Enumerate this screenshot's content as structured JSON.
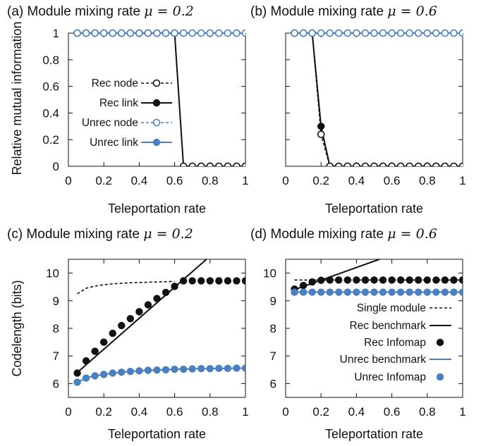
{
  "colors": {
    "rec": "#111111",
    "unrec": "#4a7fc1",
    "axis": "#111111"
  },
  "chart_data": [
    {
      "id": "a",
      "type": "line",
      "title_prefix": "(a) Module mixing rate ",
      "title_mu": "μ = 0.2",
      "xlabel": "Teleportation rate",
      "ylabel": "Relative mutual information",
      "xlim": [
        0,
        1
      ],
      "ylim": [
        0,
        1
      ],
      "xticks": [
        0,
        0.2,
        0.4,
        0.6,
        0.8,
        1
      ],
      "yticks": [
        0,
        0.2,
        0.4,
        0.6,
        0.8,
        1
      ],
      "xtick_labels": [
        "0",
        "0.2",
        "0.4",
        "0.6",
        "0.8",
        "1"
      ],
      "ytick_labels": [
        "0",
        "0.2",
        "0.4",
        "0.6",
        "0.8",
        "1"
      ],
      "legend_position": "middle-left",
      "series": [
        {
          "name": "Rec node",
          "style": "dashed",
          "marker": "open-circle",
          "color": "rec",
          "x": [
            0.05,
            0.1,
            0.15,
            0.2,
            0.25,
            0.3,
            0.35,
            0.4,
            0.45,
            0.5,
            0.55,
            0.6,
            0.65,
            0.7,
            0.75,
            0.8,
            0.85,
            0.9,
            0.95,
            1.0
          ],
          "y": [
            1,
            1,
            1,
            1,
            1,
            1,
            1,
            1,
            1,
            1,
            1,
            1,
            0,
            0,
            0,
            0,
            0,
            0,
            0,
            0
          ]
        },
        {
          "name": "Rec link",
          "style": "solid",
          "marker": "filled-circle",
          "color": "rec",
          "x": [
            0.05,
            0.1,
            0.15,
            0.2,
            0.25,
            0.3,
            0.35,
            0.4,
            0.45,
            0.5,
            0.55,
            0.6,
            0.65,
            0.7,
            0.75,
            0.8,
            0.85,
            0.9,
            0.95,
            1.0
          ],
          "y": [
            1,
            1,
            1,
            1,
            1,
            1,
            1,
            1,
            1,
            1,
            1,
            1,
            0,
            0,
            0,
            0,
            0,
            0,
            0,
            0
          ]
        },
        {
          "name": "Unrec node",
          "style": "dashed",
          "marker": "open-circle",
          "color": "unrec",
          "x": [
            0.05,
            0.1,
            0.15,
            0.2,
            0.25,
            0.3,
            0.35,
            0.4,
            0.45,
            0.5,
            0.55,
            0.6,
            0.65,
            0.7,
            0.75,
            0.8,
            0.85,
            0.9,
            0.95,
            1.0
          ],
          "y": [
            1,
            1,
            1,
            1,
            1,
            1,
            1,
            1,
            1,
            1,
            1,
            1,
            1,
            1,
            1,
            1,
            1,
            1,
            1,
            1
          ]
        },
        {
          "name": "Unrec link",
          "style": "solid",
          "marker": "filled-circle",
          "color": "unrec",
          "x": [
            0.05,
            0.1,
            0.15,
            0.2,
            0.25,
            0.3,
            0.35,
            0.4,
            0.45,
            0.5,
            0.55,
            0.6,
            0.65,
            0.7,
            0.75,
            0.8,
            0.85,
            0.9,
            0.95,
            1.0
          ],
          "y": [
            1,
            1,
            1,
            1,
            1,
            1,
            1,
            1,
            1,
            1,
            1,
            1,
            1,
            1,
            1,
            1,
            1,
            1,
            1,
            1
          ]
        }
      ]
    },
    {
      "id": "b",
      "type": "line",
      "title_prefix": "(b) Module mixing rate ",
      "title_mu": "μ = 0.6",
      "xlabel": "Teleportation rate",
      "ylabel": "",
      "xlim": [
        0,
        1
      ],
      "ylim": [
        0,
        1
      ],
      "xticks": [
        0,
        0.2,
        0.4,
        0.6,
        0.8,
        1
      ],
      "yticks": [
        0,
        0.2,
        0.4,
        0.6,
        0.8,
        1
      ],
      "xtick_labels": [
        "0",
        "0.2",
        "0.4",
        "0.6",
        "0.8",
        "1"
      ],
      "ytick_labels": [],
      "series": [
        {
          "name": "Rec node",
          "style": "dashed",
          "marker": "open-circle",
          "color": "rec",
          "x": [
            0.05,
            0.1,
            0.15,
            0.2,
            0.25,
            0.3,
            0.35,
            0.4,
            0.45,
            0.5,
            0.55,
            0.6,
            0.65,
            0.7,
            0.75,
            0.8,
            0.85,
            0.9,
            0.95,
            1.0
          ],
          "y": [
            1,
            1,
            1,
            0.24,
            0,
            0,
            0,
            0,
            0,
            0,
            0,
            0,
            0,
            0,
            0,
            0,
            0,
            0,
            0,
            0
          ]
        },
        {
          "name": "Rec link",
          "style": "solid",
          "marker": "filled-circle",
          "color": "rec",
          "x": [
            0.05,
            0.1,
            0.15,
            0.2,
            0.25,
            0.3,
            0.35,
            0.4,
            0.45,
            0.5,
            0.55,
            0.6,
            0.65,
            0.7,
            0.75,
            0.8,
            0.85,
            0.9,
            0.95,
            1.0
          ],
          "y": [
            1,
            1,
            1,
            0.3,
            0,
            0,
            0,
            0,
            0,
            0,
            0,
            0,
            0,
            0,
            0,
            0,
            0,
            0,
            0,
            0
          ]
        },
        {
          "name": "Unrec node",
          "style": "dashed",
          "marker": "open-circle",
          "color": "unrec",
          "x": [
            0.05,
            0.1,
            0.15,
            0.2,
            0.25,
            0.3,
            0.35,
            0.4,
            0.45,
            0.5,
            0.55,
            0.6,
            0.65,
            0.7,
            0.75,
            0.8,
            0.85,
            0.9,
            0.95,
            1.0
          ],
          "y": [
            1,
            1,
            1,
            1,
            1,
            1,
            1,
            1,
            1,
            1,
            1,
            1,
            1,
            1,
            1,
            1,
            1,
            1,
            1,
            1
          ]
        },
        {
          "name": "Unrec link",
          "style": "solid",
          "marker": "filled-circle",
          "color": "unrec",
          "x": [
            0.05,
            0.1,
            0.15,
            0.2,
            0.25,
            0.3,
            0.35,
            0.4,
            0.45,
            0.5,
            0.55,
            0.6,
            0.65,
            0.7,
            0.75,
            0.8,
            0.85,
            0.9,
            0.95,
            1.0
          ],
          "y": [
            1,
            1,
            1,
            1,
            1,
            1,
            1,
            1,
            1,
            1,
            1,
            1,
            1,
            1,
            1,
            1,
            1,
            1,
            1,
            1
          ]
        }
      ]
    },
    {
      "id": "c",
      "type": "line",
      "title_prefix": "(c) Module mixing rate ",
      "title_mu": "μ = 0.2",
      "xlabel": "Teleportation rate",
      "ylabel": "Codelength (bits)",
      "xlim": [
        0,
        1
      ],
      "ylim": [
        5.5,
        10.5
      ],
      "xticks": [
        0,
        0.2,
        0.4,
        0.6,
        0.8,
        1
      ],
      "yticks": [
        6,
        7,
        8,
        9,
        10
      ],
      "xtick_labels": [
        "0",
        "0.2",
        "0.4",
        "0.6",
        "0.8",
        "1"
      ],
      "ytick_labels": [
        "6",
        "7",
        "8",
        "9",
        "10"
      ],
      "series": [
        {
          "name": "Single module",
          "style": "dashed",
          "marker": "none",
          "color": "rec",
          "x": [
            0.05,
            0.1,
            0.15,
            0.2,
            0.25,
            0.3,
            0.35,
            0.4,
            0.45,
            0.5,
            0.55,
            0.6
          ],
          "y": [
            9.25,
            9.45,
            9.53,
            9.58,
            9.61,
            9.63,
            9.65,
            9.66,
            9.67,
            9.68,
            9.69,
            9.7
          ]
        },
        {
          "name": "Rec benchmark",
          "style": "solid",
          "marker": "none",
          "color": "rec",
          "x": [
            0.05,
            0.78
          ],
          "y": [
            6.4,
            10.5
          ]
        },
        {
          "name": "Rec Infomap",
          "style": "none",
          "marker": "filled-circle",
          "color": "rec",
          "x": [
            0.05,
            0.1,
            0.15,
            0.2,
            0.25,
            0.3,
            0.35,
            0.4,
            0.45,
            0.5,
            0.55,
            0.6,
            0.65,
            0.7,
            0.75,
            0.8,
            0.85,
            0.9,
            0.95,
            1.0
          ],
          "y": [
            6.38,
            6.82,
            7.17,
            7.5,
            7.82,
            8.1,
            8.35,
            8.6,
            8.85,
            9.08,
            9.3,
            9.52,
            9.72,
            9.72,
            9.72,
            9.72,
            9.72,
            9.72,
            9.72,
            9.72
          ]
        },
        {
          "name": "Unrec benchmark",
          "style": "solid",
          "marker": "none",
          "color": "unrec",
          "x": [
            0.05,
            0.1,
            0.15,
            0.2,
            0.25,
            0.3,
            0.35,
            0.4,
            0.45,
            0.5,
            0.55,
            0.6,
            0.65,
            0.7,
            0.75,
            0.8,
            0.85,
            0.9,
            0.95,
            1.0
          ],
          "y": [
            6.05,
            6.2,
            6.28,
            6.33,
            6.38,
            6.41,
            6.44,
            6.46,
            6.48,
            6.49,
            6.5,
            6.52,
            6.52,
            6.53,
            6.54,
            6.54,
            6.55,
            6.55,
            6.56,
            6.56
          ]
        },
        {
          "name": "Unrec Infomap",
          "style": "none",
          "marker": "filled-circle",
          "color": "unrec",
          "x": [
            0.05,
            0.1,
            0.15,
            0.2,
            0.25,
            0.3,
            0.35,
            0.4,
            0.45,
            0.5,
            0.55,
            0.6,
            0.65,
            0.7,
            0.75,
            0.8,
            0.85,
            0.9,
            0.95,
            1.0
          ],
          "y": [
            6.05,
            6.2,
            6.28,
            6.33,
            6.38,
            6.41,
            6.44,
            6.46,
            6.48,
            6.49,
            6.5,
            6.52,
            6.52,
            6.53,
            6.54,
            6.54,
            6.55,
            6.55,
            6.56,
            6.56
          ]
        }
      ]
    },
    {
      "id": "d",
      "type": "line",
      "title_prefix": "(d) Module mixing rate ",
      "title_mu": "μ = 0.6",
      "xlabel": "Teleportation rate",
      "ylabel": "",
      "xlim": [
        0,
        1
      ],
      "ylim": [
        5.5,
        10.5
      ],
      "xticks": [
        0,
        0.2,
        0.4,
        0.6,
        0.8,
        1
      ],
      "yticks": [
        6,
        7,
        8,
        9,
        10
      ],
      "xtick_labels": [
        "0",
        "0.2",
        "0.4",
        "0.6",
        "0.8",
        "1"
      ],
      "ytick_labels": [
        "6",
        "7",
        "8",
        "9",
        "10"
      ],
      "legend_position": "right",
      "series": [
        {
          "name": "Single module",
          "style": "dashed",
          "marker": "none",
          "color": "rec",
          "x": [
            0.05,
            1.0
          ],
          "y": [
            9.75,
            9.75
          ]
        },
        {
          "name": "Rec benchmark",
          "style": "solid",
          "marker": "none",
          "color": "rec",
          "x": [
            0.05,
            0.53
          ],
          "y": [
            9.4,
            10.5
          ]
        },
        {
          "name": "Rec Infomap",
          "style": "none",
          "marker": "filled-circle",
          "color": "rec",
          "x": [
            0.05,
            0.1,
            0.15,
            0.2,
            0.25,
            0.3,
            0.35,
            0.4,
            0.45,
            0.5,
            0.55,
            0.6,
            0.65,
            0.7,
            0.75,
            0.8,
            0.85,
            0.9,
            0.95,
            1.0
          ],
          "y": [
            9.42,
            9.55,
            9.68,
            9.74,
            9.75,
            9.75,
            9.75,
            9.75,
            9.75,
            9.75,
            9.75,
            9.75,
            9.75,
            9.75,
            9.75,
            9.75,
            9.75,
            9.75,
            9.75,
            9.75
          ]
        },
        {
          "name": "Unrec benchmark",
          "style": "solid",
          "marker": "none",
          "color": "unrec",
          "x": [
            0.05,
            1.0
          ],
          "y": [
            9.31,
            9.31
          ]
        },
        {
          "name": "Unrec Infomap",
          "style": "none",
          "marker": "filled-circle",
          "color": "unrec",
          "x": [
            0.05,
            0.1,
            0.15,
            0.2,
            0.25,
            0.3,
            0.35,
            0.4,
            0.45,
            0.5,
            0.55,
            0.6,
            0.65,
            0.7,
            0.75,
            0.8,
            0.85,
            0.9,
            0.95,
            1.0
          ],
          "y": [
            9.31,
            9.31,
            9.31,
            9.31,
            9.31,
            9.31,
            9.31,
            9.31,
            9.31,
            9.31,
            9.31,
            9.31,
            9.31,
            9.31,
            9.31,
            9.31,
            9.31,
            9.31,
            9.31,
            9.31
          ]
        }
      ]
    }
  ]
}
